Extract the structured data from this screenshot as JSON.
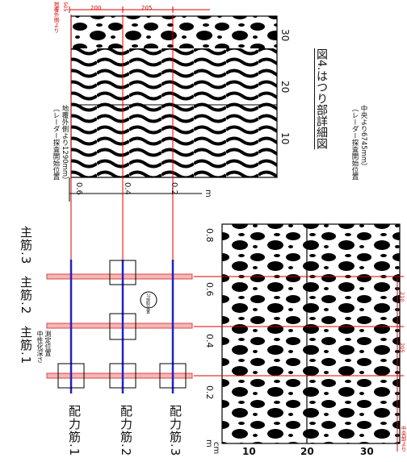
{
  "figure": {
    "title": "図4.はつり部詳細図",
    "note_top_line1": "（レーダー探査開始位置",
    "note_top_line2": "地覆外側より1290mm）",
    "note_bottom_line1": "（レーダー探査開始位置",
    "note_bottom_line2": "中央より6745mm）"
  },
  "top_scan": {
    "red_dims": [
      "505",
      "200",
      "205"
    ],
    "red_label": "地覆外側より",
    "y_ticks": [
      "0.6",
      "0.4",
      "0.2"
    ],
    "y_unit": "m",
    "x_ticks": [
      "10",
      "20",
      "30"
    ]
  },
  "bottom_scan": {
    "x_ticks": [
      "0.2",
      "0.4",
      "0.6",
      "0.8"
    ],
    "y_ticks": [
      "10",
      "20",
      "30"
    ],
    "x_unit": "m",
    "y_unit": "cm",
    "red_dims": [
      "210",
      "205"
    ],
    "red_label": "中央部より"
  },
  "drawing": {
    "main_bars": [
      "主筋.1",
      "主筋.2",
      "主筋.3"
    ],
    "dist_bars": [
      "配力筋.1",
      "配力筋.2",
      "配力筋.3"
    ],
    "neutral_label_line1": "中性化深さ",
    "neutral_label_line2": "測定位置",
    "circle_label": "ｺｱ採取位置"
  }
}
